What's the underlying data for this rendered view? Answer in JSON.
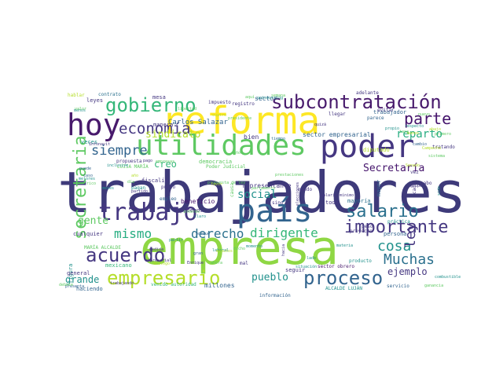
{
  "colors": {
    "navy": "#3e3a7a",
    "purple": "#481a6c",
    "darkpurple": "#44136b",
    "indigo": "#453781",
    "blue": "#3b528b",
    "steel": "#32648e",
    "slate": "#2c718e",
    "teal": "#21918c",
    "sea": "#27ad81",
    "green": "#35b779",
    "lime": "#5ec962",
    "lightgreen": "#8fd744",
    "yellowgreen": "#b5de2b",
    "yellow": "#fde725"
  },
  "words": [
    {
      "text": "trabajadores",
      "color": "navy"
    },
    {
      "text": "empresa",
      "color": "lightgreen"
    },
    {
      "text": "reforma",
      "color": "yellow"
    },
    {
      "text": "poder",
      "color": "indigo"
    },
    {
      "text": "país",
      "color": "steel"
    },
    {
      "text": "utilidades",
      "color": "lime"
    },
    {
      "text": "hoy",
      "color": "purple"
    },
    {
      "text": "trabajo",
      "color": "indigo"
    },
    {
      "text": "gobierno",
      "color": "green"
    },
    {
      "text": "subcontratación",
      "color": "purple"
    },
    {
      "text": "acuerdo",
      "color": "indigo"
    },
    {
      "text": "empresario",
      "color": "yellowgreen"
    },
    {
      "text": "proceso",
      "color": "steel"
    },
    {
      "text": "salario",
      "color": "slate"
    },
    {
      "text": "importante",
      "color": "indigo"
    },
    {
      "text": "economía",
      "color": "indigo"
    },
    {
      "text": "secretaria",
      "color": "lime"
    },
    {
      "text": "parte",
      "color": "darkpurple"
    },
    {
      "text": "mismo",
      "color": "sea"
    },
    {
      "text": "derecho",
      "color": "slate"
    },
    {
      "text": "dirigente",
      "color": "green"
    },
    {
      "text": "Muchas",
      "color": "slate"
    },
    {
      "text": "siempre",
      "color": "steel"
    },
    {
      "text": "cosa",
      "color": "teal"
    },
    {
      "text": "ley",
      "color": "indigo"
    },
    {
      "text": "social",
      "color": "teal"
    },
    {
      "text": "reparto",
      "color": "sea"
    },
    {
      "text": "Secretaría",
      "color": "darkpurple"
    },
    {
      "text": "sindicato",
      "color": "yellowgreen"
    },
    {
      "text": "pueblo",
      "color": "teal"
    },
    {
      "text": "ejemplo",
      "color": "indigo"
    },
    {
      "text": "gente",
      "color": "lime"
    },
    {
      "text": "creo",
      "color": "green"
    },
    {
      "text": "grande",
      "color": "teal"
    },
    {
      "text": "Carlos Salazar",
      "color": "steel"
    },
    {
      "text": "sector empresarial",
      "color": "steel"
    },
    {
      "text": "representante",
      "color": "indigo"
    },
    {
      "text": "trabajador",
      "color": "steel"
    },
    {
      "text": "sector",
      "color": "steel"
    },
    {
      "text": "mesa",
      "color": "indigo"
    },
    {
      "text": "leyes",
      "color": "indigo"
    },
    {
      "text": "contrato",
      "color": "slate"
    },
    {
      "text": "veces",
      "color": "teal"
    },
    {
      "text": "bien",
      "color": "indigo"
    },
    {
      "text": "tiempo",
      "color": "slate"
    },
    {
      "text": "beneficio",
      "color": "darkpurple"
    },
    {
      "text": "podemos",
      "color": "indigo"
    },
    {
      "text": "toda",
      "color": "indigo"
    },
    {
      "text": "mayoría",
      "color": "slate"
    },
    {
      "text": "mayor",
      "color": "steel"
    },
    {
      "text": "millones",
      "color": "steel"
    },
    {
      "text": "información",
      "color": "steel"
    },
    {
      "text": "servicio",
      "color": "steel"
    },
    {
      "text": "haciendo",
      "color": "steel"
    },
    {
      "text": "mexicano",
      "color": "green"
    },
    {
      "text": "fiscalía",
      "color": "indigo"
    },
    {
      "text": "pagan",
      "color": "teal"
    },
    {
      "text": "punto",
      "color": "indigo"
    },
    {
      "text": "democracia",
      "color": "lime"
    },
    {
      "text": "Poder Judicial",
      "color": "lime"
    },
    {
      "text": "LUISA MARÍA",
      "color": "lime"
    },
    {
      "text": "MARÍA ALCALDE",
      "color": "lime"
    },
    {
      "text": "ALCALDE LUJÁN",
      "color": "teal"
    },
    {
      "text": "cualquier",
      "color": "indigo"
    },
    {
      "text": "empleo",
      "color": "steel"
    },
    {
      "text": "seguir",
      "color": "indigo"
    },
    {
      "text": "sino",
      "color": "indigo"
    },
    {
      "text": "persona",
      "color": "steel"
    },
    {
      "text": "producto",
      "color": "teal"
    },
    {
      "text": "proyecto",
      "color": "indigo"
    },
    {
      "text": "figura",
      "color": "teal"
    },
    {
      "text": "diputado",
      "color": "yellowgreen"
    },
    {
      "text": "propuesta",
      "color": "indigo"
    },
    {
      "text": "adelante",
      "color": "indigo"
    },
    {
      "text": "sector obrero",
      "color": "purple"
    },
    {
      "text": "situación",
      "color": "teal"
    },
    {
      "text": "momento",
      "color": "teal"
    },
    {
      "text": "respecto",
      "color": "teal"
    },
    {
      "text": "registro",
      "color": "indigo"
    },
    {
      "text": "impuesto",
      "color": "indigo"
    },
    {
      "text": "manera",
      "color": "indigo"
    },
    {
      "text": "Infonavit",
      "color": "indigo"
    },
    {
      "text": "mundo",
      "color": "indigo"
    },
    {
      "text": "práctica",
      "color": "teal"
    },
    {
      "text": "peso",
      "color": "indigo"
    },
    {
      "text": "elecciones",
      "color": "indigo"
    },
    {
      "text": "llegar",
      "color": "indigo"
    },
    {
      "text": "cabo",
      "color": "indigo"
    },
    {
      "text": "vez",
      "color": "indigo"
    },
    {
      "text": "propio",
      "color": "teal"
    },
    {
      "text": "parece",
      "color": "steel"
    },
    {
      "text": "tratando",
      "color": "indigo"
    },
    {
      "text": "general",
      "color": "indigo"
    },
    {
      "text": "empresarial",
      "color": "indigo"
    },
    {
      "text": "quizá",
      "color": "indigo"
    },
    {
      "text": "pago",
      "color": "indigo"
    },
    {
      "text": "mal",
      "color": "indigo"
    },
    {
      "text": "lado",
      "color": "teal"
    },
    {
      "text": "grupo",
      "color": "indigo"
    },
    {
      "text": "partido",
      "color": "indigo"
    },
    {
      "text": "evitar",
      "color": "indigo"
    },
    {
      "text": "materia",
      "color": "teal"
    },
    {
      "text": "salario mínimo",
      "color": "indigo"
    },
    {
      "text": "hacia",
      "color": "indigo"
    },
    {
      "text": "cada",
      "color": "indigo"
    },
    {
      "text": "venido autoridad",
      "color": "green"
    },
    {
      "text": "presenta",
      "color": "steel"
    },
    {
      "text": "trabajando",
      "color": "indigo"
    },
    {
      "text": "Enrique",
      "color": "indigo"
    },
    {
      "text": "combustible",
      "color": "teal"
    },
    {
      "text": "partir",
      "color": "teal"
    },
    {
      "text": "caso",
      "color": "steel"
    },
    {
      "text": "medida",
      "color": "indigo"
    },
    {
      "text": "laboral",
      "color": "teal"
    },
    {
      "text": "gran",
      "color": "steel"
    },
    {
      "text": "sido",
      "color": "teal"
    },
    {
      "text": "sistema",
      "color": "lime"
    },
    {
      "text": "meses",
      "color": "teal"
    },
    {
      "text": "menos",
      "color": "teal"
    },
    {
      "text": "mejores",
      "color": "teal"
    },
    {
      "text": "inclusive",
      "color": "teal"
    },
    {
      "text": "rico",
      "color": "lime"
    },
    {
      "text": "puede",
      "color": "steel"
    },
    {
      "text": "día",
      "color": "lime"
    },
    {
      "text": "año",
      "color": "yellowgreen"
    },
    {
      "text": "causa",
      "color": "lime"
    },
    {
      "text": "parlamento",
      "color": "lime"
    },
    {
      "text": "hablar",
      "color": "yellowgreen"
    },
    {
      "text": "debate",
      "color": "lime"
    },
    {
      "text": "diálogo",
      "color": "yellowgreen"
    },
    {
      "text": "empresas",
      "color": "lime"
    },
    {
      "text": "prestaciones",
      "color": "lime"
    },
    {
      "text": "cambio",
      "color": "steel"
    },
    {
      "text": "ahora",
      "color": "lime"
    },
    {
      "text": "propuesta de ley",
      "color": "lime"
    },
    {
      "text": "dicho",
      "color": "lime"
    },
    {
      "text": "claro",
      "color": "teal"
    },
    {
      "text": "valor",
      "color": "lime"
    },
    {
      "text": "cuatro",
      "color": "yellowgreen"
    },
    {
      "text": "abajo",
      "color": "yellowgreen"
    },
    {
      "text": "interés",
      "color": "lime"
    },
    {
      "text": "señor",
      "color": "lime"
    },
    {
      "text": "presidente",
      "color": "lime"
    },
    {
      "text": "aquí",
      "color": "lime"
    },
    {
      "text": "outsourcing",
      "color": "teal"
    },
    {
      "text": "libertad",
      "color": "lime"
    },
    {
      "text": "porque",
      "color": "steel"
    },
    {
      "text": "semana",
      "color": "lime"
    },
    {
      "text": "nuevo",
      "color": "lime"
    },
    {
      "text": "manos",
      "color": "yellowgreen"
    },
    {
      "text": "Campeche",
      "color": "yellowgreen"
    },
    {
      "text": "tasa",
      "color": "lime"
    },
    {
      "text": "primero",
      "color": "lime"
    },
    {
      "text": "favor",
      "color": "yellowgreen"
    },
    {
      "text": "minutos",
      "color": "yellowgreen"
    },
    {
      "text": "Senado",
      "color": "yellowgreen"
    },
    {
      "text": "ganancia",
      "color": "lime"
    },
    {
      "text": "cierto",
      "color": "lime"
    },
    {
      "text": "ver",
      "color": "steel"
    },
    {
      "text": "ojalá",
      "color": "lime"
    }
  ]
}
